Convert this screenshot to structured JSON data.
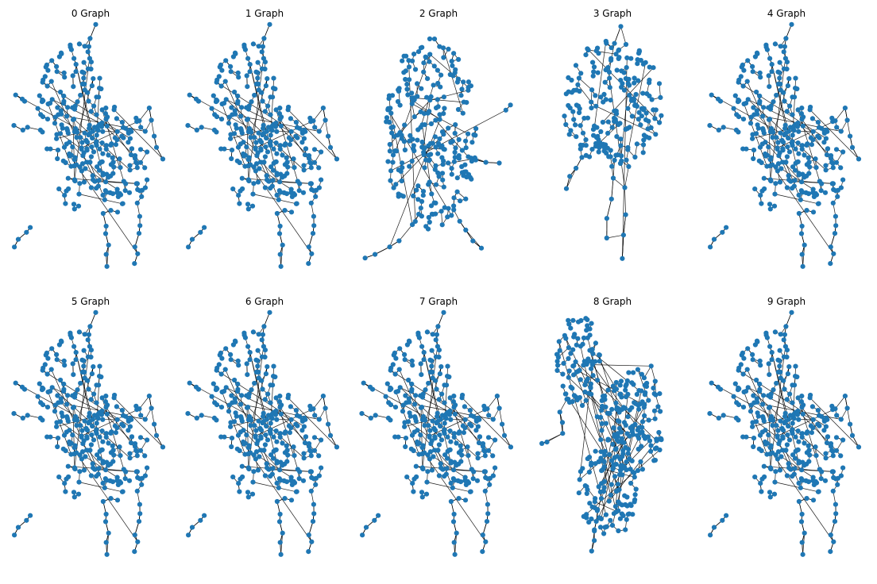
{
  "figure": {
    "node_color": "#1f77b4",
    "edge_color": "#000000",
    "background": "#ffffff"
  },
  "panels": [
    {
      "title": "0 Graph",
      "layout": "A"
    },
    {
      "title": "1 Graph",
      "layout": "A"
    },
    {
      "title": "2 Graph",
      "layout": "B"
    },
    {
      "title": "3 Graph",
      "layout": "C"
    },
    {
      "title": "4 Graph",
      "layout": "A"
    },
    {
      "title": "5 Graph",
      "layout": "A"
    },
    {
      "title": "6 Graph",
      "layout": "A"
    },
    {
      "title": "7 Graph",
      "layout": "A"
    },
    {
      "title": "8 Graph",
      "layout": "D"
    },
    {
      "title": "9 Graph",
      "layout": "A"
    }
  ]
}
